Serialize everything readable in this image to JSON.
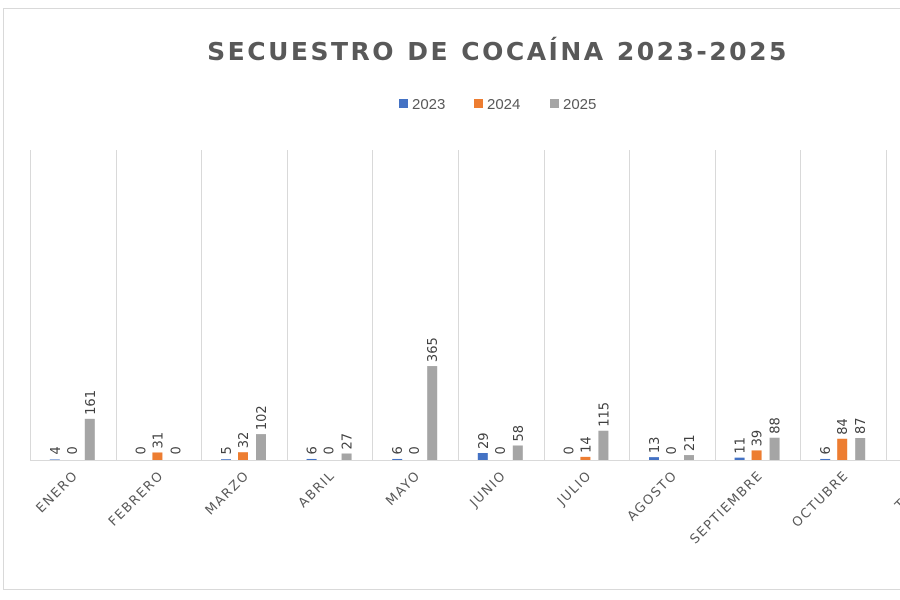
{
  "chart_data": {
    "type": "bar",
    "title": "SECUESTRO DE COCAÍNA 2023-2025",
    "categories": [
      "ENERO",
      "FEBRERO",
      "MARZO",
      "ABRIL",
      "MAYO",
      "JUNIO",
      "JULIO",
      "AGOSTO",
      "SEPTIEMBRE",
      "OCTUBRE",
      "TOTAL"
    ],
    "series": [
      {
        "name": "2023",
        "color": "#4472C4",
        "values": [
          4,
          0,
          5,
          6,
          6,
          29,
          0,
          13,
          11,
          6,
          null
        ]
      },
      {
        "name": "2024",
        "color": "#ED7D31",
        "values": [
          0,
          31,
          32,
          0,
          0,
          0,
          14,
          0,
          39,
          84,
          null
        ]
      },
      {
        "name": "2025",
        "color": "#A5A5A5",
        "values": [
          161,
          0,
          102,
          27,
          365,
          58,
          115,
          21,
          88,
          87,
          null
        ]
      }
    ],
    "ylim": [
      0,
      1200
    ],
    "y_axis_visible": false,
    "grid": "vertical category separators",
    "legend_position": "top",
    "data_labels": true,
    "xlabel": "",
    "ylabel": ""
  }
}
